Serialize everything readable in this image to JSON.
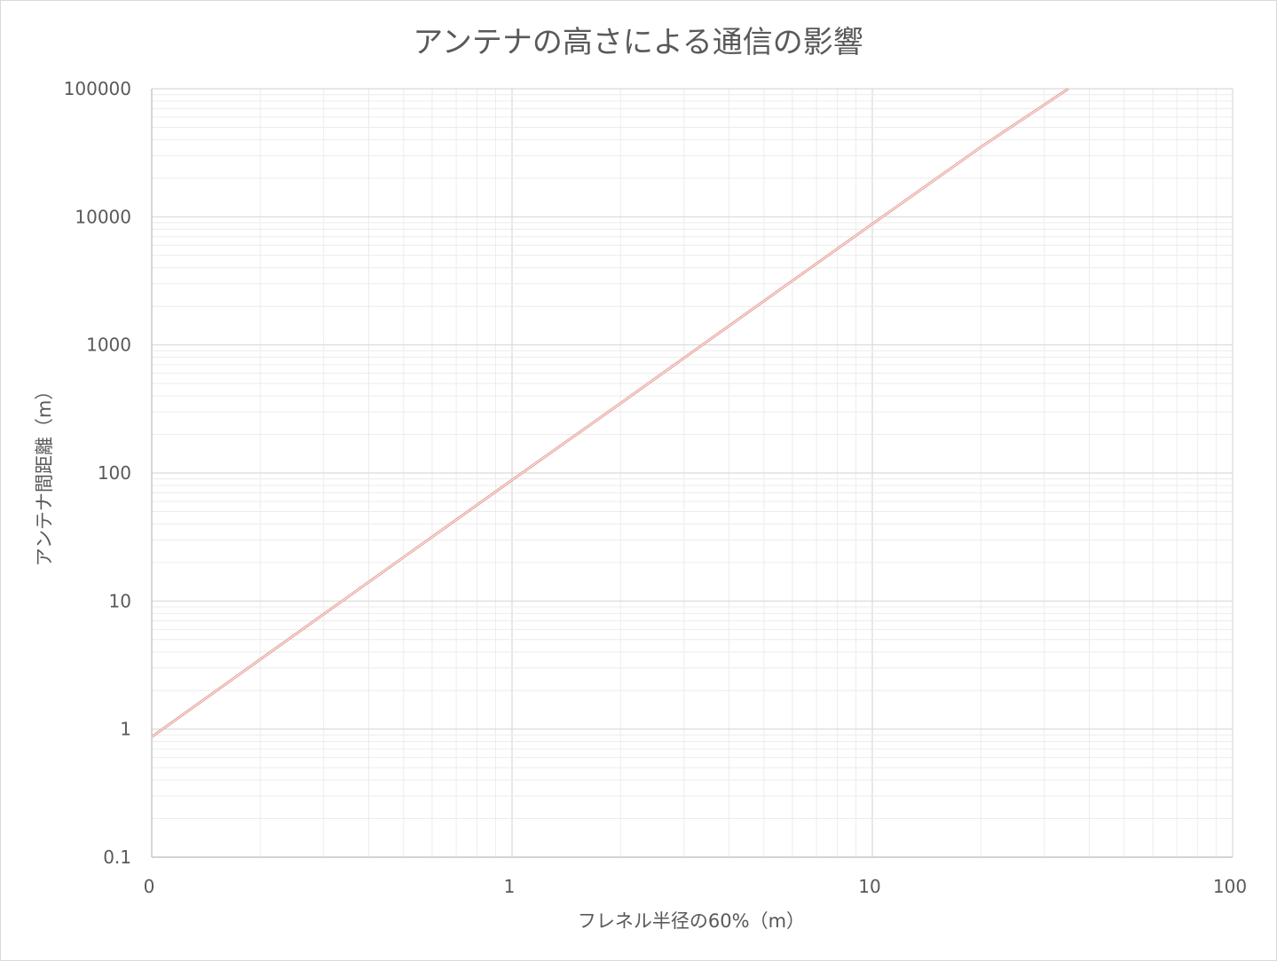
{
  "chart_data": {
    "type": "line",
    "title": "アンテナの高さによる通信の影響",
    "xlabel": "フレネル半径の60%（m）",
    "ylabel": "アンテナ間距離（m）",
    "x_scale": "log",
    "y_scale": "log",
    "xlim": [
      0.1,
      100
    ],
    "ylim": [
      0.1,
      100000
    ],
    "x_ticks": [
      {
        "value": 0.1,
        "label": "0"
      },
      {
        "value": 1,
        "label": "1"
      },
      {
        "value": 10,
        "label": "10"
      },
      {
        "value": 100,
        "label": "100"
      }
    ],
    "y_ticks": [
      {
        "value": 0.1,
        "label": "0.1"
      },
      {
        "value": 1,
        "label": "1"
      },
      {
        "value": 10,
        "label": "10"
      },
      {
        "value": 100,
        "label": "100"
      },
      {
        "value": 1000,
        "label": "1000"
      },
      {
        "value": 10000,
        "label": "10000"
      },
      {
        "value": 100000,
        "label": "100000"
      }
    ],
    "grid": true,
    "legend": "none",
    "series": [
      {
        "color": "#e6a39a",
        "x": [
          0.1,
          0.2,
          0.5,
          1,
          2,
          5,
          10,
          20,
          35
        ],
        "y": [
          0.87,
          3.5,
          22,
          88,
          350,
          2200,
          8800,
          35000,
          100000
        ]
      }
    ],
    "colors": {
      "major_grid": "#d9d9d9",
      "minor_grid": "#ececec",
      "text": "#595959"
    }
  }
}
